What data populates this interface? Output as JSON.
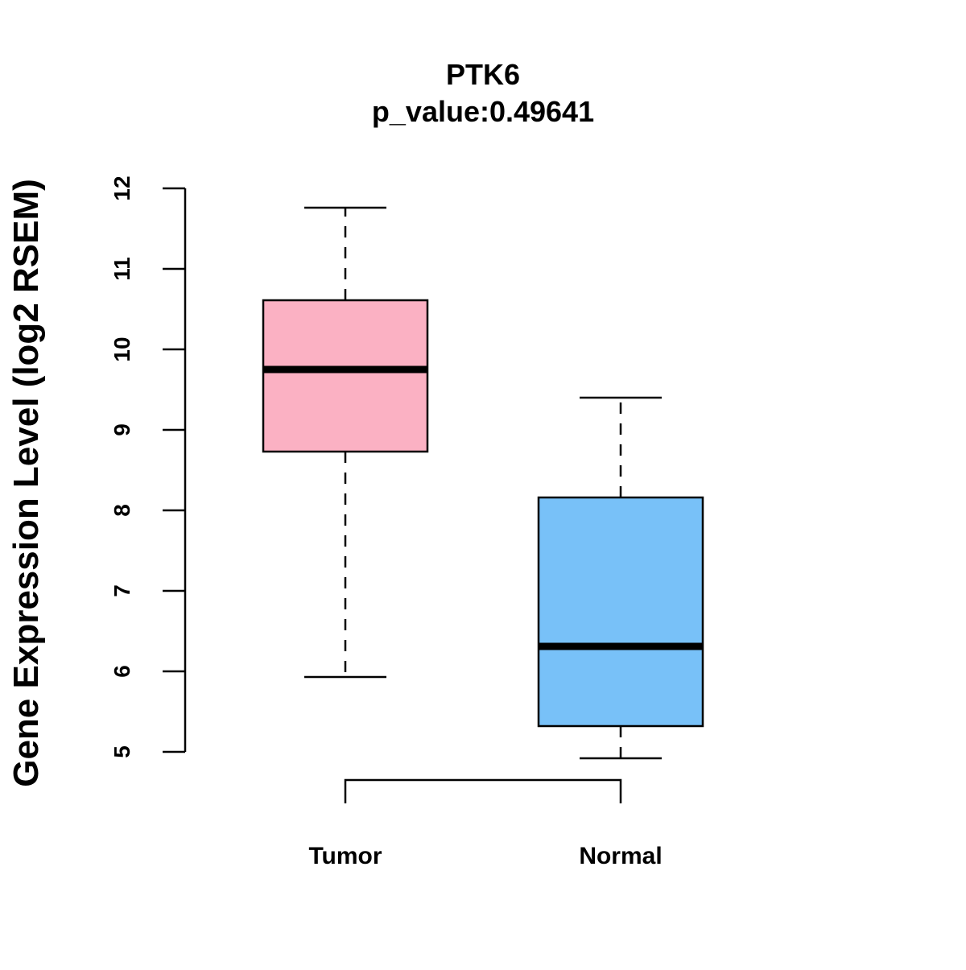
{
  "chart_data": {
    "type": "box",
    "title": "PTK6",
    "subtitle": "p_value:0.49641",
    "ylabel": "Gene Expression Level (log2 RSEM)",
    "xlabel": "",
    "ylim": [
      5,
      12
    ],
    "yticks": [
      "5",
      "6",
      "7",
      "8",
      "9",
      "10",
      "11",
      "12"
    ],
    "categories": [
      "Tumor",
      "Normal"
    ],
    "boxes": [
      {
        "name": "Tumor",
        "color": "#FBB1C3",
        "whisker_low": 5.93,
        "q1": 8.73,
        "median": 9.75,
        "q3": 10.61,
        "whisker_high": 11.76
      },
      {
        "name": "Normal",
        "color": "#78C1F8",
        "whisker_low": 4.92,
        "q1": 5.32,
        "median": 6.31,
        "q3": 8.16,
        "whisker_high": 9.4
      }
    ],
    "grid": false,
    "comparison_bracket": true
  }
}
